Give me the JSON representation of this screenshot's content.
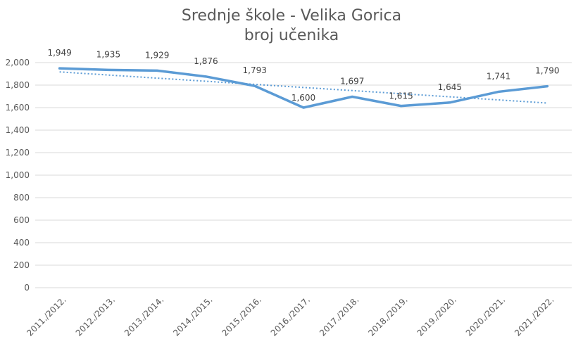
{
  "chart_data": {
    "type": "line",
    "title": "Srednje škole - Velika Gorica",
    "subtitle": "broj učenika",
    "categories": [
      "2011./2012.",
      "2012./2013.",
      "2013./2014.",
      "2014./2015.",
      "2015./2016.",
      "2016./2017.",
      "2017./2018.",
      "2018./2019.",
      "2019./2020.",
      "2020./2021.",
      "2021./2022."
    ],
    "series": [
      {
        "values": [
          1949,
          1935,
          1929,
          1876,
          1793,
          1600,
          1697,
          1615,
          1645,
          1741,
          1790
        ],
        "data_labels": [
          "1,949",
          "1,935",
          "1,929",
          "1,876",
          "1,793",
          "1,600",
          "1,697",
          "1,615",
          "1,645",
          "1,741",
          "1,790"
        ],
        "color": "#5b9bd5"
      }
    ],
    "trendline": {
      "type": "linear",
      "style": "dotted",
      "color": "#5b9bd5"
    },
    "ylim": [
      0,
      2000
    ],
    "yticks": [
      0,
      200,
      400,
      600,
      800,
      1000,
      1200,
      1400,
      1600,
      1800,
      2000
    ],
    "ytick_labels": [
      "0",
      "200",
      "400",
      "600",
      "800",
      "1,000",
      "1,200",
      "1,400",
      "1,600",
      "1,800",
      "2,000"
    ],
    "grid": true,
    "xlabel": "",
    "ylabel": ""
  }
}
